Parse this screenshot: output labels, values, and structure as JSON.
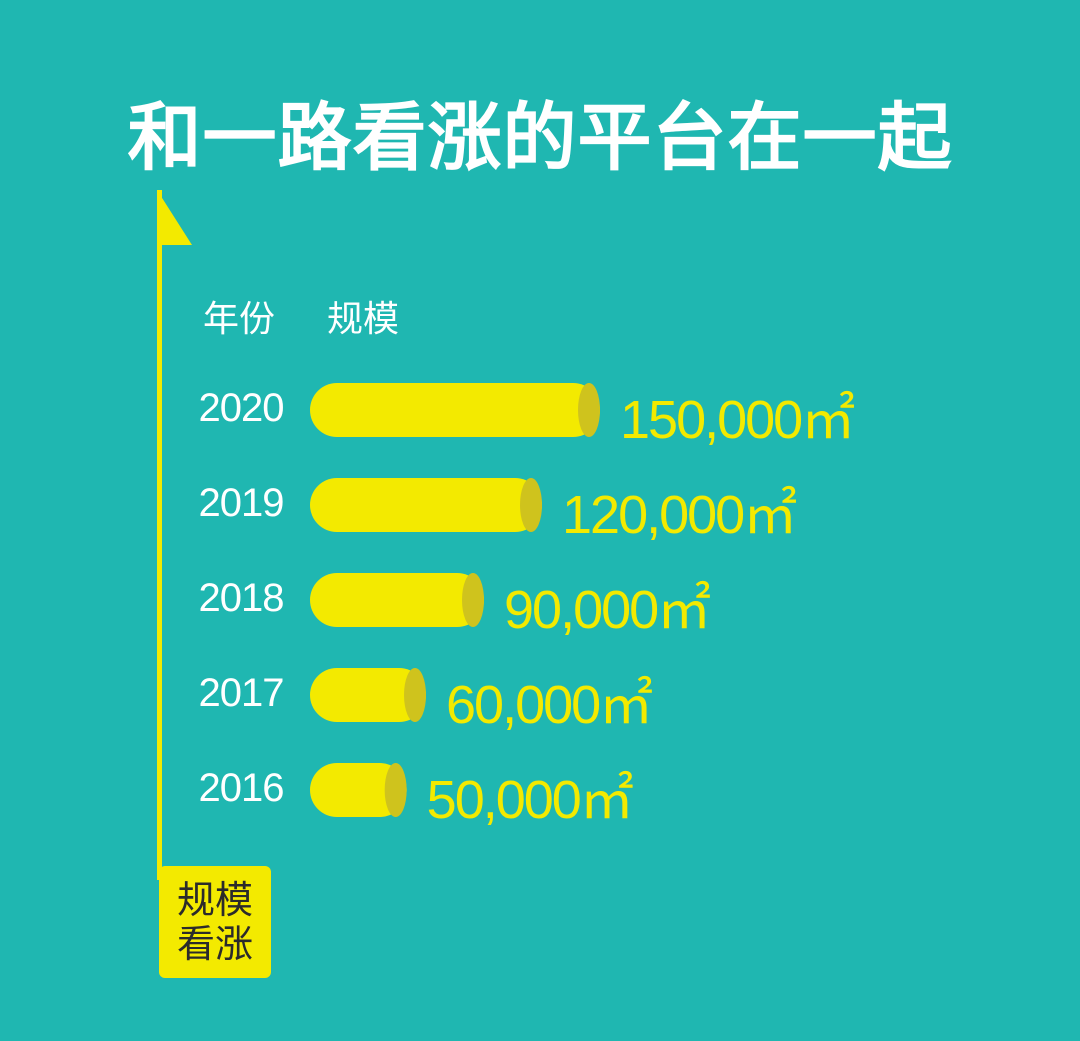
{
  "title": "和一路看涨的平台在一起",
  "header": {
    "year_label": "年份",
    "scale_label": "规模"
  },
  "badge": {
    "line1": "规模",
    "line2": "看涨"
  },
  "colors": {
    "background": "#1fb7b1",
    "bar": "#f3ea00",
    "bar_end": "#cfc31d",
    "text": "#ffffff"
  },
  "chart_data": {
    "type": "bar",
    "orientation": "horizontal",
    "categories": [
      "2020",
      "2019",
      "2018",
      "2017",
      "2016"
    ],
    "values": [
      150000,
      120000,
      90000,
      60000,
      50000
    ],
    "value_labels": [
      "150,000㎡",
      "120,000㎡",
      "90,000㎡",
      "60,000㎡",
      "50,000㎡"
    ],
    "unit": "㎡",
    "grid": false
  }
}
